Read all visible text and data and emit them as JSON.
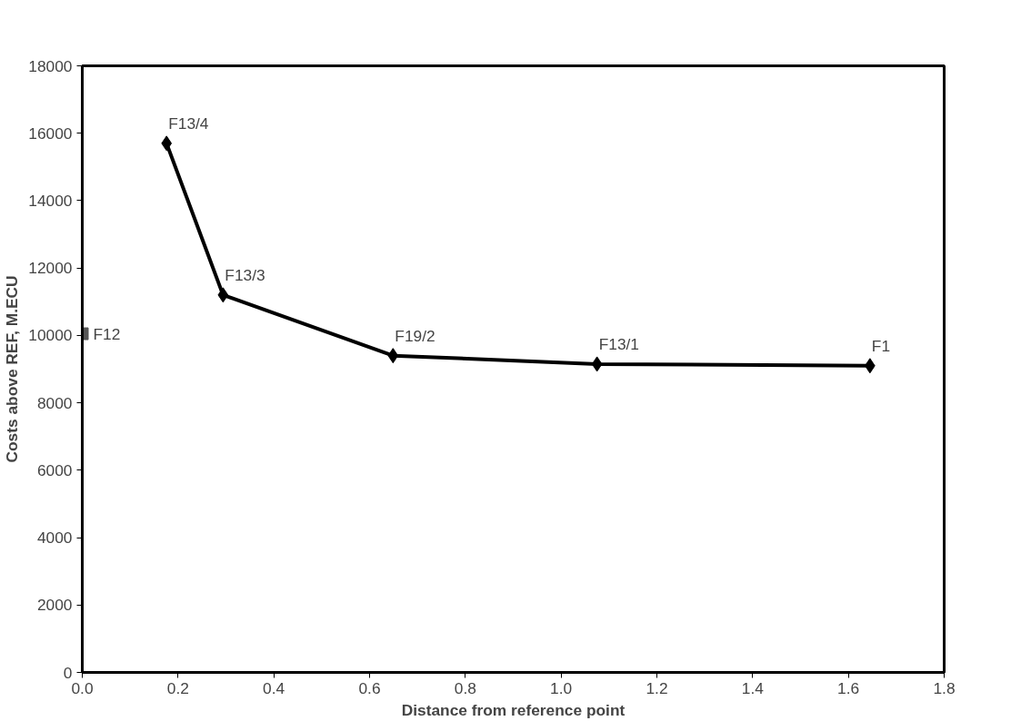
{
  "chart_data": {
    "type": "line",
    "xlabel": "Distance from reference point",
    "ylabel": "Costs above REF, M.ECU",
    "xlim": [
      0,
      1.8
    ],
    "xticks": [
      {
        "value": 0,
        "label": "0.0"
      },
      0.2,
      0.4,
      0.6,
      0.8,
      {
        "value": 1,
        "label": "1.0"
      },
      1.2,
      1.4,
      1.6,
      1.8
    ],
    "ylim": [
      0,
      18000
    ],
    "yticks": [
      0,
      2000,
      4000,
      6000,
      8000,
      10000,
      12000,
      14000,
      16000,
      18000
    ],
    "grid": false,
    "series": [
      {
        "marker": "diamond",
        "color": "#000000",
        "x": [
          0.176,
          0.294,
          0.649,
          1.075,
          1.645
        ],
        "values": [
          15700,
          11200,
          9400,
          9150,
          9100
        ]
      },
      {
        "type": "scatter",
        "marker": "square",
        "color": "#555555",
        "x": [
          0
        ],
        "values": [
          10050
        ]
      }
    ],
    "annotations": [
      {
        "text": "F13/4",
        "x": 0.176,
        "y": 15700
      },
      {
        "text": "F13/3",
        "x": 0.294,
        "y": 11200
      },
      {
        "text": "F19/2",
        "x": 0.649,
        "y": 9400
      },
      {
        "text": "F13/1",
        "x": 1.075,
        "y": 9150
      },
      {
        "text": "F1",
        "x": 1.645,
        "y": 9100
      },
      {
        "text": "F12",
        "x": 0,
        "y": 10050
      }
    ]
  }
}
